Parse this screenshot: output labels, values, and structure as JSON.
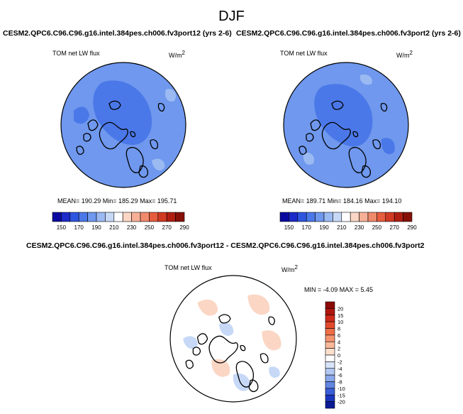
{
  "page_title": "DJF",
  "panels": [
    {
      "case_title": "CESM2.QPC6.C96.C96.g16.intel.384pes.ch006.fv3port12 (yrs 2-6)",
      "variable": "TOM net LW flux",
      "units_base": "W/m",
      "units_exp": "2",
      "stats": "MEAN= 190.29  Min= 185.29  Max= 195.71",
      "colorbar_labels": [
        "150",
        "170",
        "190",
        "210",
        "230",
        "250",
        "270",
        "290"
      ],
      "colorbar_colors": [
        "#0a0aa0",
        "#1b2ac8",
        "#2e55e0",
        "#4b78e8",
        "#6f98ee",
        "#9bbaf2",
        "#c6d8f6",
        "#ffffff",
        "#fbd6c4",
        "#f7b097",
        "#f08a6c",
        "#e65c3e",
        "#d03a22",
        "#b01e12",
        "#861006"
      ],
      "fill_base": "#6f98ee",
      "fill_dark": "#4b78e8",
      "fill_light": "#9bbaf2"
    },
    {
      "case_title": "CESM2.QPC6.C96.C96.g16.intel.384pes.ch006.fv3port2 (yrs 2-6)",
      "variable": "TOM net LW flux",
      "units_base": "W/m",
      "units_exp": "2",
      "stats": "MEAN= 189.71  Min= 184.16  Max= 194.10",
      "colorbar_labels": [
        "150",
        "170",
        "190",
        "210",
        "230",
        "250",
        "270",
        "290"
      ],
      "colorbar_colors": [
        "#0a0aa0",
        "#1b2ac8",
        "#2e55e0",
        "#4b78e8",
        "#6f98ee",
        "#9bbaf2",
        "#c6d8f6",
        "#ffffff",
        "#fbd6c4",
        "#f7b097",
        "#f08a6c",
        "#e65c3e",
        "#d03a22",
        "#b01e12",
        "#861006"
      ],
      "fill_base": "#6f98ee",
      "fill_dark": "#4b78e8",
      "fill_light": "#9bbaf2"
    }
  ],
  "diff_panel": {
    "title": "CESM2.QPC6.C96.C96.g16.intel.384pes.ch006.fv3port12 - CESM2.QPC6.C96.C96.g16.intel.384pes.ch006.fv3port2",
    "variable": "TOM net LW flux",
    "units_base": "W/m",
    "units_exp": "2",
    "stats": "MIN =  -4.09 MAX =   5.45",
    "colorbar_labels": [
      "20",
      "15",
      "10",
      "8",
      "6",
      "4",
      "2",
      "0",
      "-2",
      "-4",
      "-6",
      "-8",
      "-10",
      "-15",
      "-20"
    ],
    "colorbar_colors": [
      "#8c0a06",
      "#b0160e",
      "#cf2a1a",
      "#e34a2c",
      "#f06e48",
      "#f69470",
      "#fab89a",
      "#fde0cc",
      "#ffffff",
      "#d8e4f8",
      "#b2c8f2",
      "#8aa8ea",
      "#6286e2",
      "#3a5ed8",
      "#1a36c0",
      "#0a1a96"
    ],
    "fill_base": "#ffffff",
    "fill_warm": "#fbd6c4",
    "fill_cool": "#c6d8f6"
  }
}
